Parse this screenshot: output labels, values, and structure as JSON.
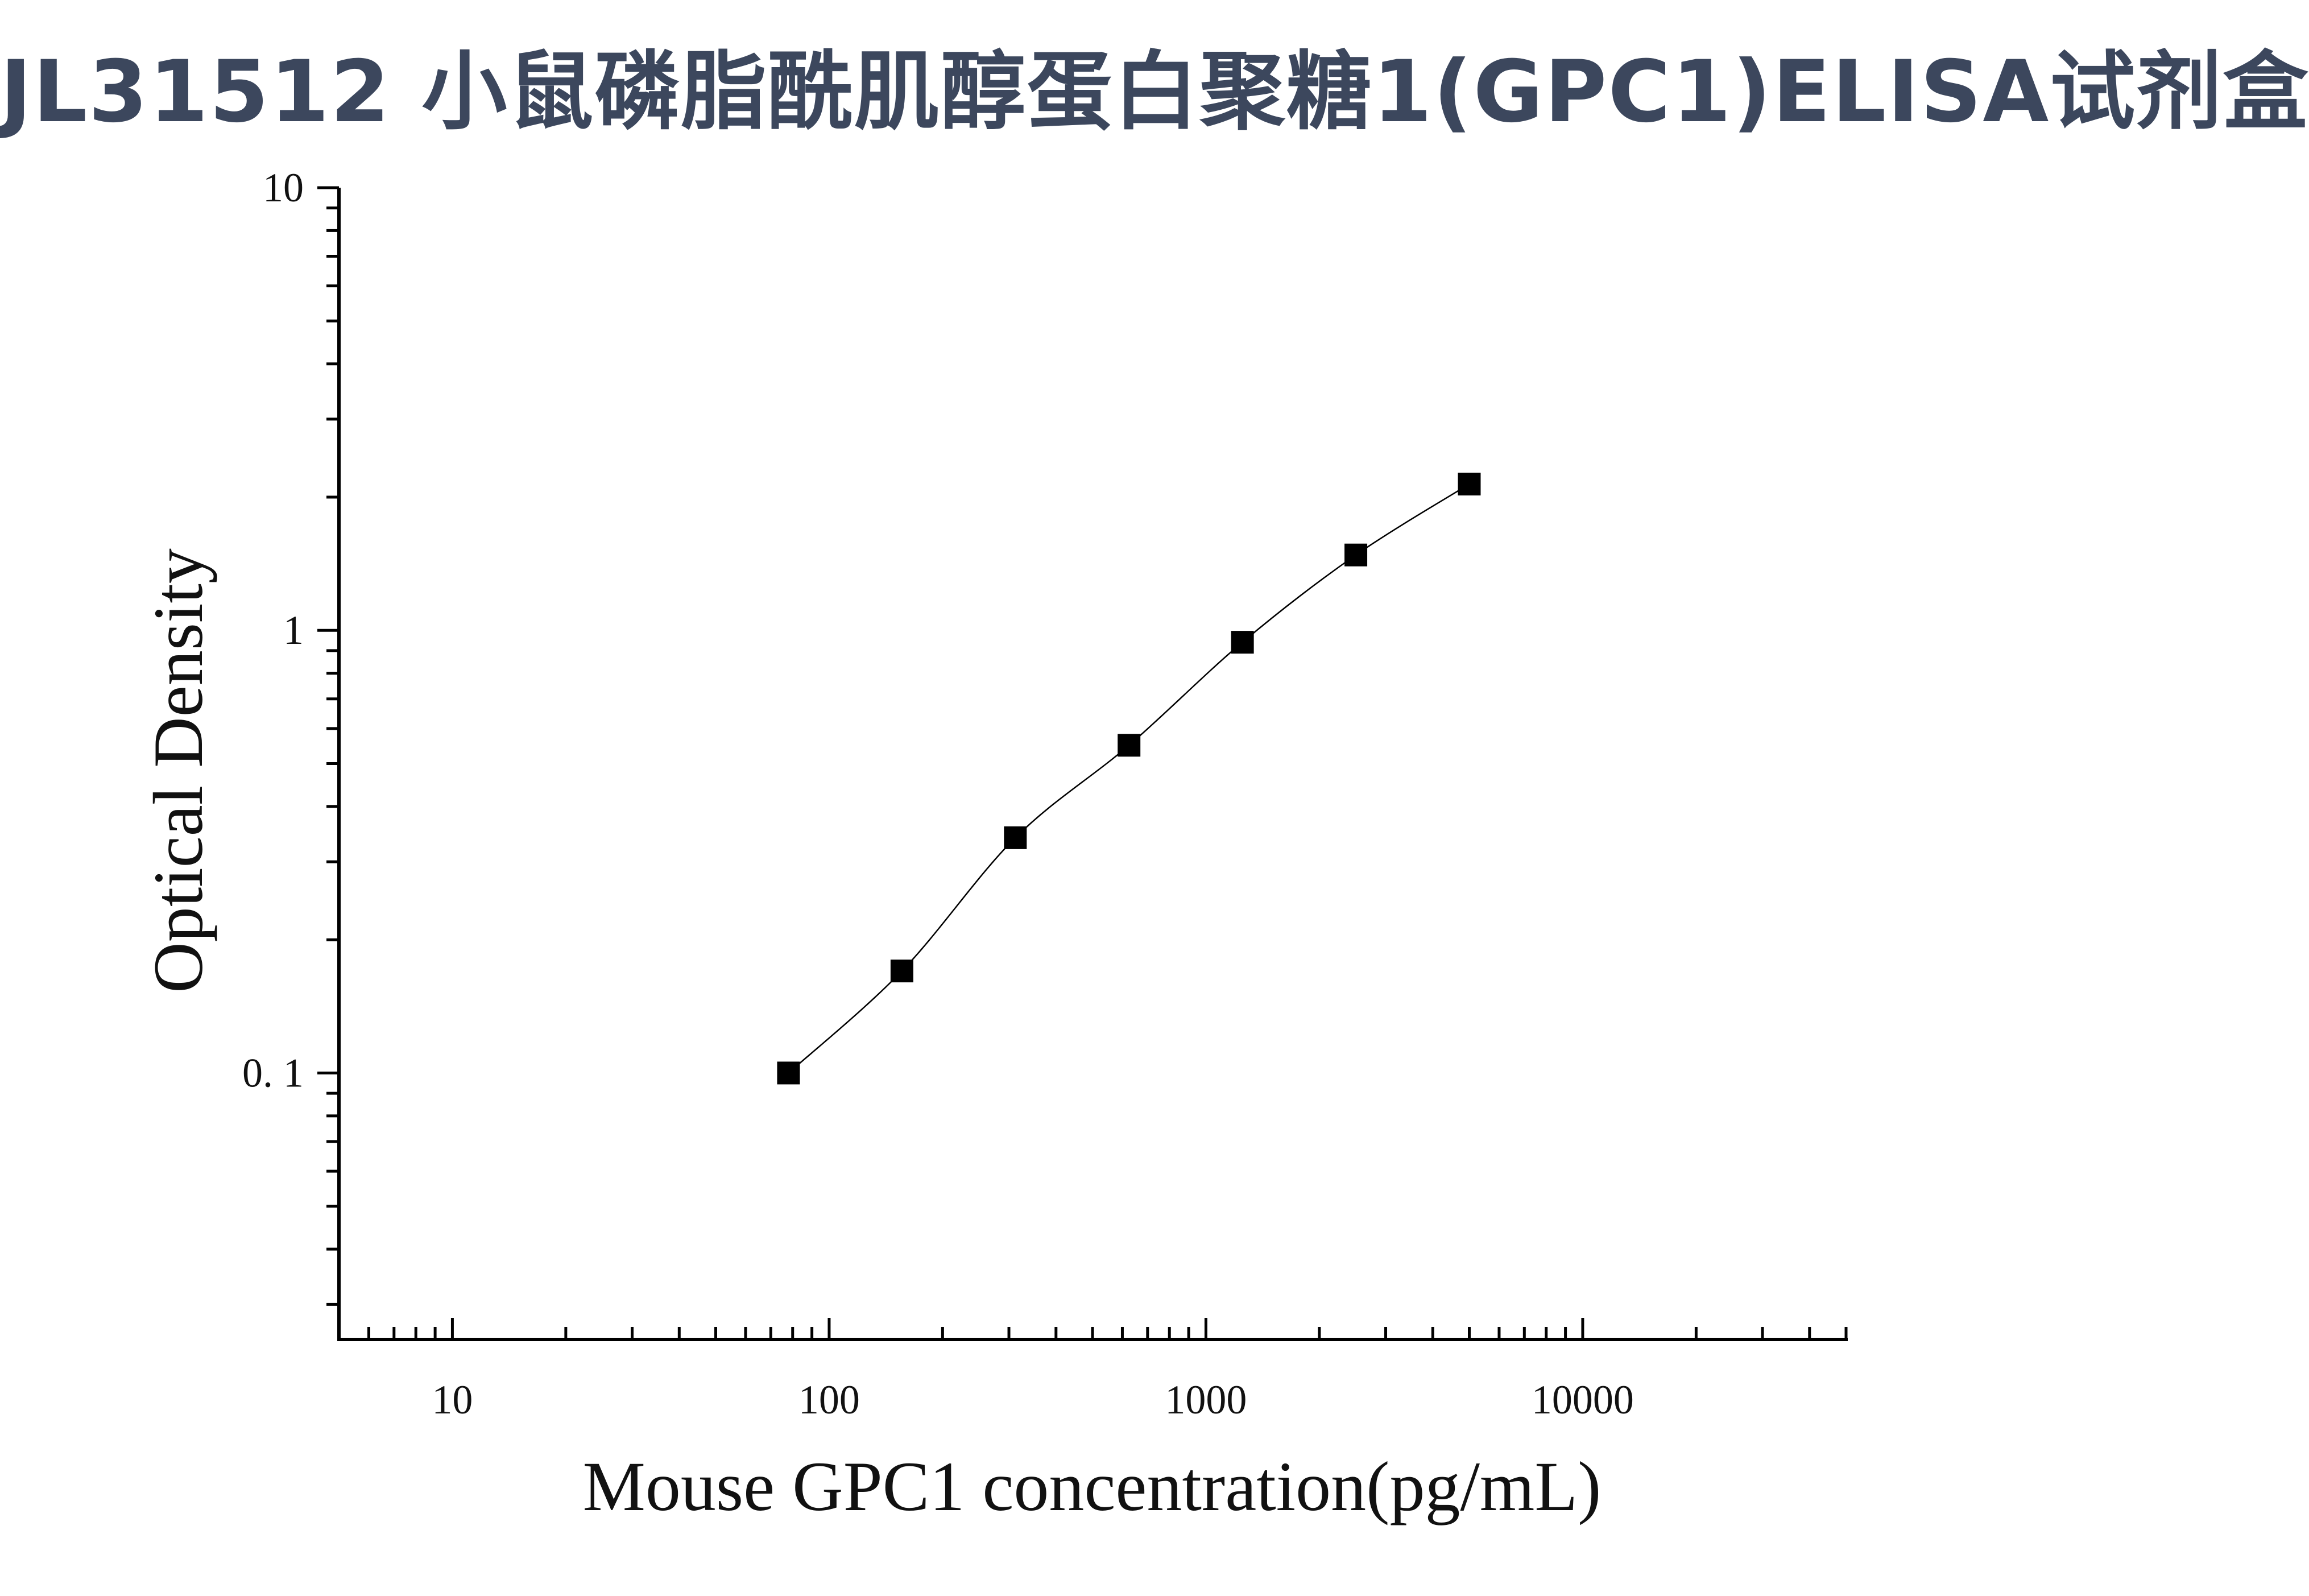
{
  "chart_data": {
    "type": "scatter",
    "title": "JL31512 小鼠磷脂酰肌醇蛋白聚糖1(GPC1)ELISA试剂盒",
    "xlabel": "Mouse GPC1 concentration(pg/mL)",
    "ylabel": "Optical Density",
    "x_scale": "log",
    "y_scale": "log",
    "xlim": [
      5,
      50000
    ],
    "ylim": [
      0.025,
      10
    ],
    "x_ticks": [
      10,
      100,
      1000,
      10000
    ],
    "x_tick_labels": [
      "10",
      "100",
      "1000",
      "10000"
    ],
    "y_ticks": [
      0.1,
      1,
      10
    ],
    "y_tick_labels": [
      "0. 1",
      "1",
      "10"
    ],
    "grid": false,
    "series": [
      {
        "marker": "square",
        "line": "smooth-curve",
        "color": "#000000",
        "x": [
          78,
          156,
          312,
          625,
          1250,
          2500,
          5000
        ],
        "y": [
          0.1,
          0.17,
          0.34,
          0.55,
          0.94,
          1.48,
          2.14
        ]
      }
    ]
  }
}
